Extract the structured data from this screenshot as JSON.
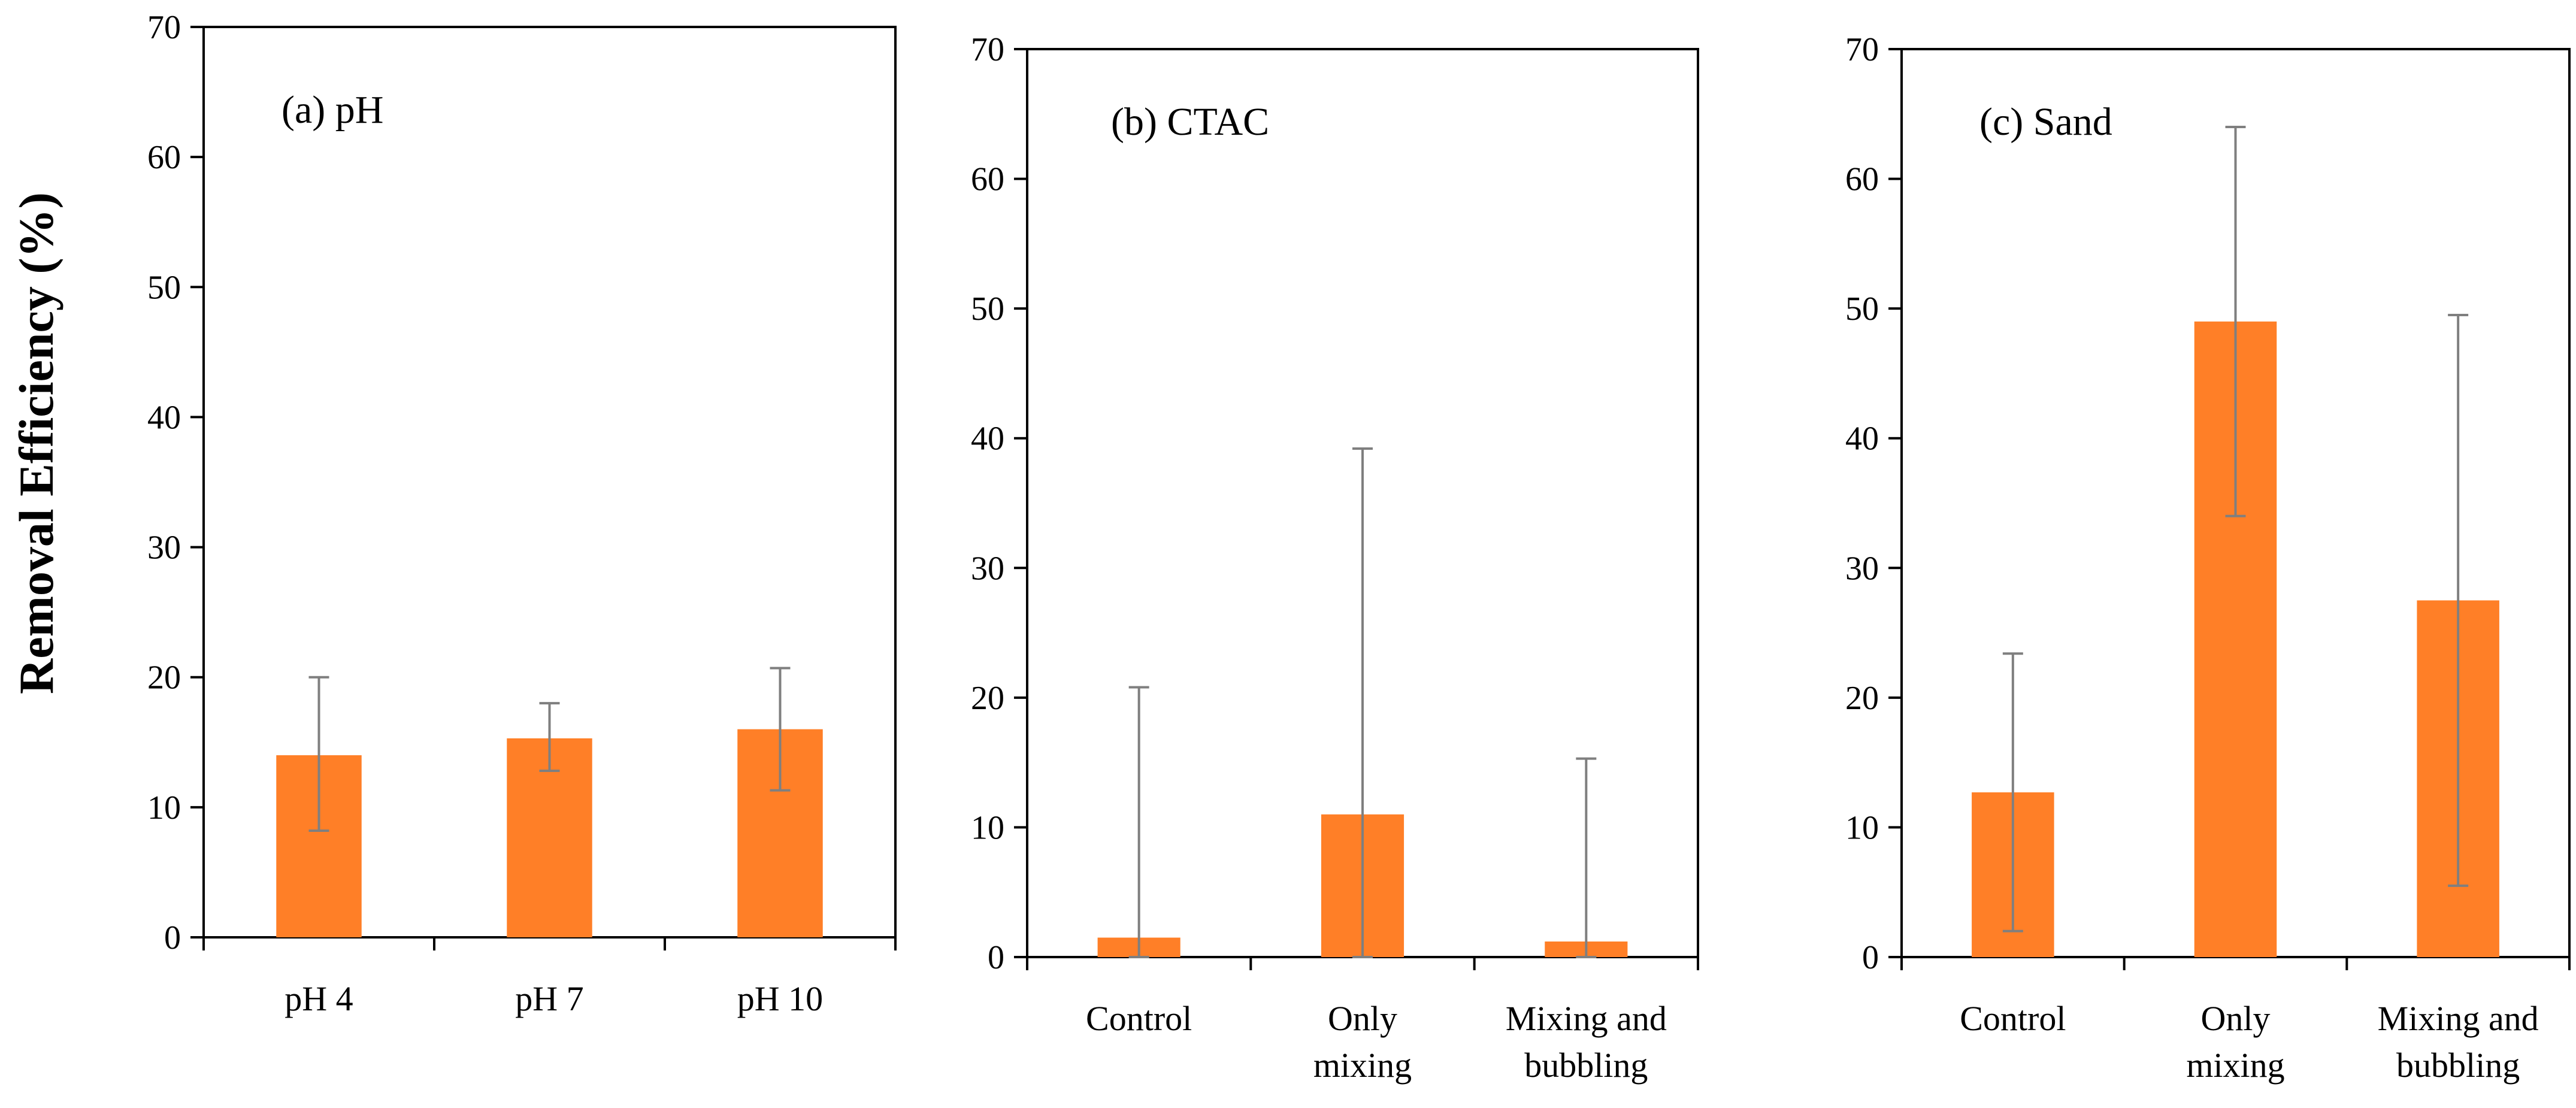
{
  "ylabel": "Removal Efficiency (%)",
  "colors": {
    "bar": "#FF7F27",
    "error": "#7f7f7f",
    "axis": "#000000"
  },
  "chart_data": [
    {
      "type": "bar",
      "title": "(a) pH",
      "xlabel": "",
      "ylabel": "Removal Efficiency (%)",
      "ylim": [
        0,
        70
      ],
      "yticks": [
        "0",
        "10",
        "20",
        "30",
        "40",
        "50",
        "60",
        "70"
      ],
      "categories": [
        [
          "pH 4"
        ],
        [
          "pH 7"
        ],
        [
          "pH 10"
        ]
      ],
      "values": [
        14,
        15.3,
        16
      ],
      "error_low": [
        8.2,
        12.8,
        11.3
      ],
      "error_high": [
        20,
        18,
        20.7
      ]
    },
    {
      "type": "bar",
      "title": "(b) CTAC",
      "xlabel": "",
      "ylabel": "",
      "ylim": [
        0,
        70
      ],
      "yticks": [
        "0",
        "10",
        "20",
        "30",
        "40",
        "50",
        "60",
        "70"
      ],
      "categories": [
        [
          "Control"
        ],
        [
          "Only",
          "mixing"
        ],
        [
          "Mixing and",
          "bubbling"
        ]
      ],
      "values": [
        1.5,
        11,
        1.2
      ],
      "error_low": [
        0,
        0,
        0
      ],
      "error_high": [
        20.8,
        39.2,
        15.3
      ]
    },
    {
      "type": "bar",
      "title": "(c) Sand",
      "xlabel": "",
      "ylabel": "",
      "ylim": [
        0,
        70
      ],
      "yticks": [
        "0",
        "10",
        "20",
        "30",
        "40",
        "50",
        "60",
        "70"
      ],
      "categories": [
        [
          "Control"
        ],
        [
          "Only",
          "mixing"
        ],
        [
          "Mixing and",
          "bubbling"
        ]
      ],
      "values": [
        12.7,
        49,
        27.5
      ],
      "error_low": [
        2,
        34,
        5.5
      ],
      "error_high": [
        23.4,
        64,
        49.5
      ]
    }
  ]
}
